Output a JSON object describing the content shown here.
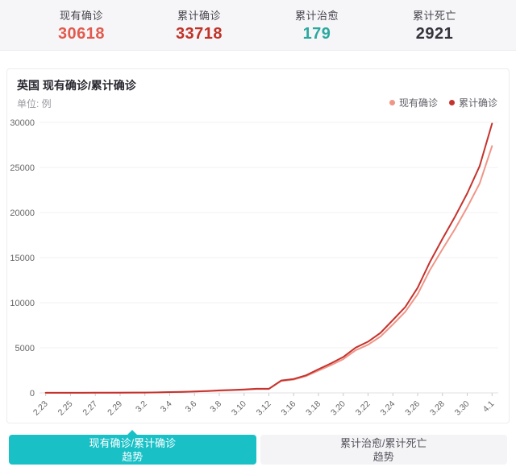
{
  "stats": {
    "items": [
      {
        "label": "现有确诊",
        "value": "30618",
        "color": "#e25a4e"
      },
      {
        "label": "累计确诊",
        "value": "33718",
        "color": "#c03328"
      },
      {
        "label": "累计治愈",
        "value": "179",
        "color": "#2ba89f"
      },
      {
        "label": "累计死亡",
        "value": "2921",
        "color": "#34343c"
      }
    ]
  },
  "chart": {
    "title": "英国 现有确诊/累计确诊",
    "unit_label": "单位: 例",
    "legend": [
      {
        "label": "现有确诊",
        "color": "#ef9688"
      },
      {
        "label": "累计确诊",
        "color": "#c5332e"
      }
    ]
  },
  "chart_data": {
    "type": "line",
    "title": "英国 现有确诊/累计确诊",
    "ylabel": "例",
    "ylim": [
      0,
      30000
    ],
    "yticks": [
      0,
      5000,
      10000,
      15000,
      20000,
      25000,
      30000
    ],
    "grid": true,
    "legend_position": "top-right",
    "x": [
      "2.23",
      "2.24",
      "2.25",
      "2.26",
      "2.27",
      "2.28",
      "2.29",
      "3.1",
      "3.2",
      "3.3",
      "3.4",
      "3.5",
      "3.6",
      "3.7",
      "3.8",
      "3.9",
      "3.10",
      "3.11",
      "3.12",
      "3.15",
      "3.16",
      "3.17",
      "3.18",
      "3.19",
      "3.20",
      "3.21",
      "3.22",
      "3.23",
      "3.24",
      "3.25",
      "3.26",
      "3.27",
      "3.28",
      "3.29",
      "3.30",
      "3.31",
      "4.1"
    ],
    "x_tick_labels": [
      "2.23",
      "2.25",
      "2.27",
      "2.29",
      "3.2",
      "3.4",
      "3.6",
      "3.8",
      "3.10",
      "3.12",
      "3.16",
      "3.18",
      "3.20",
      "3.22",
      "3.24",
      "3.26",
      "3.28",
      "3.30",
      "4.1"
    ],
    "series": [
      {
        "name": "现有确诊",
        "color": "#ef9688",
        "values": [
          5,
          5,
          5,
          5,
          7,
          11,
          15,
          28,
          32,
          43,
          79,
          97,
          143,
          186,
          252,
          299,
          349,
          430,
          430,
          1318,
          1469,
          1860,
          2471,
          3073,
          3741,
          4720,
          5337,
          6250,
          7590,
          8999,
          10945,
          13649,
          15935,
          18159,
          20598,
          23226,
          27378
        ]
      },
      {
        "name": "累计确诊",
        "color": "#c5332e",
        "values": [
          13,
          13,
          13,
          13,
          15,
          19,
          23,
          36,
          40,
          51,
          87,
          116,
          163,
          206,
          273,
          321,
          373,
          456,
          456,
          1372,
          1543,
          1950,
          2626,
          3269,
          3983,
          5018,
          5683,
          6650,
          8077,
          9529,
          11658,
          14543,
          17089,
          19522,
          22141,
          25150,
          29865
        ]
      }
    ]
  },
  "tabs": [
    {
      "line1": "现有确诊/累计确诊",
      "line2": "趋势",
      "active": true
    },
    {
      "line1": "累计治愈/累计死亡",
      "line2": "趋势",
      "active": false
    }
  ]
}
